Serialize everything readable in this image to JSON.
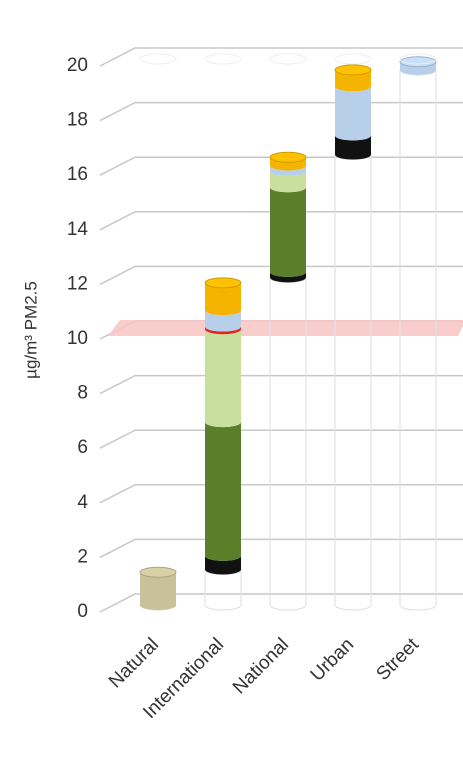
{
  "chart_data": {
    "type": "stacked-cylinder",
    "ylabel": "µg/m³ PM2.5",
    "categories": [
      "Natural",
      "International",
      "National",
      "Urban",
      "Street"
    ],
    "ylim": [
      0,
      20
    ],
    "yticks": [
      0,
      2,
      4,
      6,
      8,
      10,
      12,
      14,
      16,
      18,
      20
    ],
    "grid": true,
    "band": {
      "value": 10,
      "color": "#f9c4c4"
    },
    "series": [
      {
        "color": "transparent",
        "values": [
          0,
          1.3,
          12.0,
          16.5,
          19.6
        ]
      },
      {
        "color": "#c9c19a",
        "values": [
          1.2,
          null,
          null,
          null,
          null
        ]
      },
      {
        "color": "#111111",
        "values": [
          null,
          0.5,
          0.2,
          0.7,
          null
        ]
      },
      {
        "color": "#5a7f2a",
        "values": [
          null,
          4.9,
          3.1,
          null,
          null
        ]
      },
      {
        "color": "#c8dfa0",
        "values": [
          null,
          3.4,
          0.6,
          null,
          null
        ]
      },
      {
        "color": "#e8231e",
        "values": [
          null,
          0.1,
          null,
          null,
          null
        ]
      },
      {
        "color": "#b7cfe9",
        "values": [
          null,
          0.6,
          0.2,
          1.8,
          0.3
        ]
      },
      {
        "color": "#f5b400",
        "values": [
          null,
          1.0,
          0.3,
          0.6,
          null
        ]
      }
    ]
  }
}
